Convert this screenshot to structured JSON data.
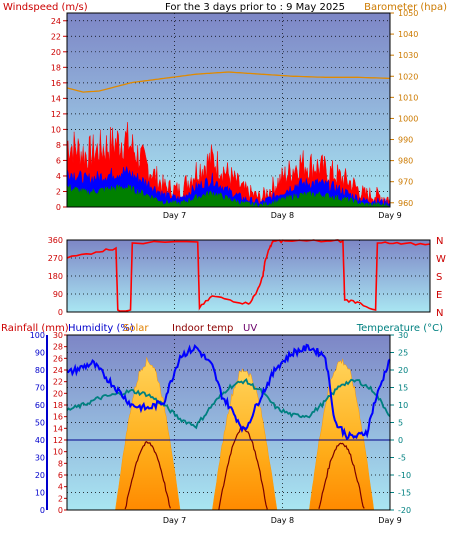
{
  "header": {
    "title": "For the 3 days prior to : 9 May 2025",
    "left_label": "Windspeed (m/s)",
    "right_label": "Barometer (hpa)"
  },
  "colors": {
    "wind_axis": "#cc0000",
    "baro_axis": "#cc7a00",
    "rain_axis": "#cc0000",
    "humidity_axis": "#0000cc",
    "solar_label": "#e08000",
    "indoor_label": "#8b0000",
    "uv_label": "#6a006a",
    "temp_axis": "#008080",
    "gust": "#ff0000",
    "wind_avg": "#0000ff",
    "wind_low": "#008000",
    "baro_line": "#e08a00",
    "direction_line": "#ff0000",
    "humidity_line": "#0000ff",
    "temp_line": "#008080",
    "solar_fill": "#ffb000",
    "uv_line": "#7a0000",
    "plot_top": "#7d86c6",
    "plot_bottom": "#a9e6f2"
  },
  "chart_data": [
    {
      "type": "area",
      "name_hint": "wind-barometer",
      "x_ticks": [
        "Day 7",
        "Day 8",
        "Day 9"
      ],
      "left_axis": {
        "label": "Windspeed (m/s)",
        "range": [
          0,
          25
        ],
        "ticks": [
          "24",
          "22",
          "20",
          "18",
          "16",
          "14",
          "12",
          "10",
          "8",
          "6",
          "4",
          "2",
          "0"
        ]
      },
      "right_axis": {
        "label": "Barometer (hpa)",
        "range": [
          958,
          1050
        ],
        "ticks": [
          "1050",
          "1040",
          "1030",
          "1020",
          "1010",
          "1000",
          "990",
          "980",
          "970",
          "960"
        ]
      },
      "grid": true,
      "series": [
        {
          "axis": "left",
          "kind": "gust",
          "x": [
            0,
            0.06,
            0.12,
            0.18,
            0.25,
            0.3,
            0.35,
            0.4,
            0.45,
            0.5,
            0.55,
            0.6,
            0.65,
            0.72,
            0.78,
            0.83,
            0.88,
            0.92,
            0.95,
            1.0
          ],
          "values": [
            8.0,
            6.5,
            7.5,
            8.5,
            5.0,
            2.5,
            2.0,
            4.5,
            6.0,
            4.0,
            2.0,
            1.0,
            3.0,
            5.5,
            5.0,
            4.0,
            3.0,
            1.5,
            1.5,
            1.0
          ]
        },
        {
          "axis": "left",
          "kind": "average",
          "x": [
            0,
            0.06,
            0.12,
            0.18,
            0.25,
            0.3,
            0.35,
            0.4,
            0.45,
            0.5,
            0.55,
            0.6,
            0.65,
            0.72,
            0.78,
            0.83,
            0.88,
            0.92,
            0.95,
            1.0
          ],
          "values": [
            4.5,
            3.5,
            4.0,
            4.5,
            3.0,
            1.5,
            1.0,
            2.5,
            3.5,
            2.0,
            1.0,
            0.5,
            1.5,
            3.0,
            3.0,
            2.5,
            1.5,
            0.8,
            0.8,
            0.5
          ]
        },
        {
          "axis": "left",
          "kind": "low",
          "x": [
            0,
            0.06,
            0.12,
            0.18,
            0.25,
            0.3,
            0.35,
            0.4,
            0.45,
            0.5,
            0.55,
            0.6,
            0.65,
            0.72,
            0.78,
            0.83,
            0.88,
            0.92,
            0.95,
            1.0
          ],
          "values": [
            2.5,
            1.8,
            2.2,
            2.5,
            1.5,
            0.6,
            0.4,
            1.2,
            1.8,
            1.0,
            0.4,
            0.2,
            0.7,
            1.5,
            1.6,
            1.2,
            0.8,
            0.3,
            0.3,
            0.2
          ]
        },
        {
          "axis": "right",
          "kind": "barometer",
          "x": [
            0,
            0.05,
            0.1,
            0.2,
            0.3,
            0.4,
            0.5,
            0.6,
            0.7,
            0.8,
            0.9,
            1.0
          ],
          "values": [
            1014.5,
            1012.5,
            1013,
            1017,
            1019,
            1021,
            1022,
            1021,
            1020,
            1019.5,
            1019.5,
            1019
          ]
        }
      ]
    },
    {
      "type": "line",
      "name_hint": "wind-direction",
      "x_ticks": [],
      "left_axis": {
        "range": [
          0,
          360
        ],
        "ticks": [
          "360",
          "270",
          "180",
          "90",
          "0"
        ]
      },
      "right_labels": [
        "N",
        "W",
        "S",
        "E",
        "N"
      ],
      "grid": true,
      "series": [
        {
          "kind": "direction",
          "x": [
            0,
            0.08,
            0.135,
            0.14,
            0.175,
            0.18,
            0.36,
            0.365,
            0.4,
            0.45,
            0.5,
            0.52,
            0.54,
            0.545,
            0.56,
            0.57,
            0.6,
            0.72,
            0.76,
            0.765,
            0.8,
            0.85,
            0.855,
            0.92,
            1.0
          ],
          "values": [
            270,
            300,
            320,
            10,
            10,
            345,
            350,
            20,
            80,
            60,
            40,
            90,
            180,
            250,
            330,
            355,
            355,
            355,
            355,
            60,
            50,
            10,
            345,
            340,
            340
          ]
        }
      ]
    },
    {
      "type": "area",
      "name_hint": "rain-humidity-temperature",
      "x_ticks": [
        "Day 7",
        "Day 8",
        "Day 9"
      ],
      "labels": {
        "rainfall": "Rainfall (mm)",
        "humidity": "Humidity (%)",
        "solar": "Solar",
        "indoor": "Indoor temp",
        "uv": "UV",
        "temperature": "Temperature (°C)"
      },
      "rain_axis": {
        "range": [
          0,
          30
        ],
        "ticks": [
          "30",
          "28",
          "26",
          "24",
          "22",
          "20",
          "18",
          "16",
          "14",
          "12",
          "10",
          "8",
          "6",
          "4",
          "2",
          "0"
        ]
      },
      "humidity_axis": {
        "range": [
          0,
          100
        ],
        "ticks": [
          "100",
          "90",
          "80",
          "70",
          "60",
          "50",
          "40",
          "30",
          "20",
          "10",
          "0"
        ]
      },
      "temp_axis": {
        "range": [
          -20,
          30
        ],
        "ticks": [
          "30",
          "25",
          "20",
          "15",
          "10",
          "5",
          "0",
          "-5",
          "-10",
          "-15",
          "-20"
        ]
      },
      "grid": true,
      "series": [
        {
          "kind": "humidity",
          "x": [
            0,
            0.08,
            0.15,
            0.2,
            0.25,
            0.3,
            0.35,
            0.4,
            0.45,
            0.48,
            0.5,
            0.55,
            0.6,
            0.65,
            0.7,
            0.75,
            0.8,
            0.83,
            0.87,
            0.9,
            0.93,
            0.95,
            1.0
          ],
          "values": [
            78,
            84,
            70,
            60,
            58,
            62,
            88,
            93,
            82,
            65,
            60,
            45,
            65,
            82,
            90,
            93,
            88,
            50,
            42,
            42,
            45,
            60,
            87
          ]
        },
        {
          "kind": "temperature",
          "x": [
            0,
            0.05,
            0.1,
            0.15,
            0.2,
            0.25,
            0.3,
            0.35,
            0.4,
            0.45,
            0.5,
            0.55,
            0.6,
            0.65,
            0.7,
            0.75,
            0.8,
            0.85,
            0.9,
            0.95,
            1.0
          ],
          "values": [
            8.5,
            10,
            12,
            13,
            14,
            13,
            10,
            6,
            4,
            10,
            15,
            17,
            14,
            9,
            7,
            7,
            11,
            16,
            17,
            14,
            7
          ]
        },
        {
          "kind": "solar",
          "x": [
            0.15,
            0.2,
            0.25,
            0.3,
            0.35,
            0.45,
            0.5,
            0.55,
            0.6,
            0.65,
            0.75,
            0.8,
            0.85,
            0.9,
            0.95
          ],
          "values": [
            0,
            0.65,
            0.85,
            0.65,
            0,
            0,
            0.65,
            0.8,
            0.65,
            0,
            0,
            0.65,
            0.85,
            0.65,
            0
          ]
        },
        {
          "kind": "uv",
          "x": [
            0.18,
            0.21,
            0.25,
            0.29,
            0.32,
            0.47,
            0.5,
            0.53,
            0.56,
            0.6,
            0.62,
            0.78,
            0.81,
            0.85,
            0.89,
            0.92
          ],
          "values": [
            0,
            0.35,
            0.45,
            0.35,
            0,
            0,
            0.35,
            0.55,
            0.4,
            0.3,
            0,
            0,
            0.35,
            0.45,
            0.35,
            0
          ]
        },
        {
          "kind": "temp_zero_line",
          "values": [
            0
          ]
        }
      ]
    }
  ]
}
